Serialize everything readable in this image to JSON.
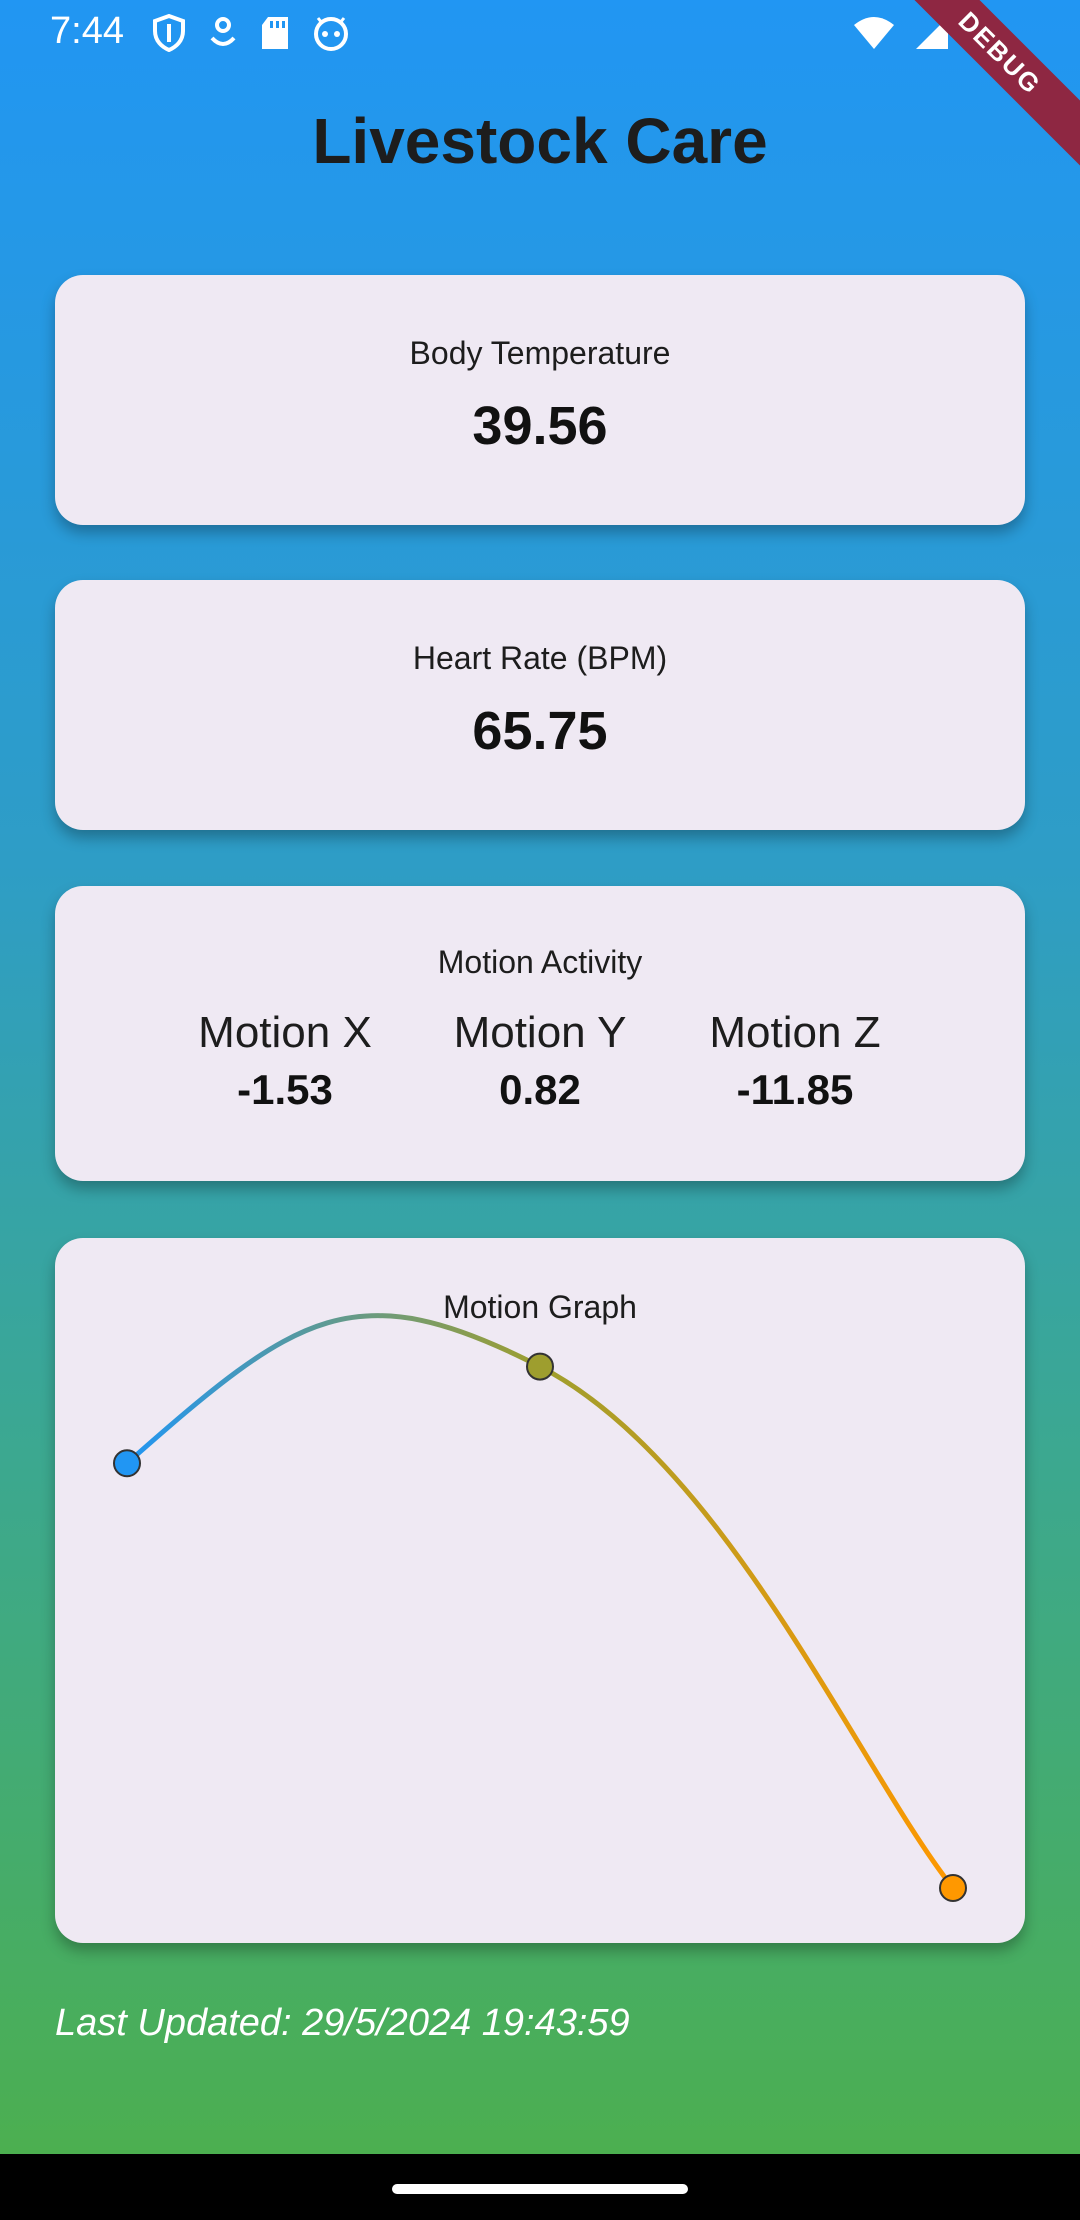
{
  "status": {
    "time": "7:44",
    "left_icons": [
      "shield-icon",
      "location-icon",
      "sd-card-icon",
      "android-icon"
    ],
    "right_icons": [
      "wifi-icon",
      "signal-icon",
      "battery-icon"
    ]
  },
  "debug_banner": "DEBUG",
  "title": "Livestock Care",
  "body_temperature": {
    "label": "Body Temperature",
    "value": "39.56"
  },
  "heart_rate": {
    "label": "Heart Rate (BPM)",
    "value": "65.75"
  },
  "motion": {
    "label": "Motion Activity",
    "x_label": "Motion X",
    "x_value": "-1.53",
    "y_label": "Motion Y",
    "y_value": "0.82",
    "z_label": "Motion Z",
    "z_value": "-11.85"
  },
  "chart_data": {
    "type": "line",
    "title": "Motion Graph",
    "x": [
      0,
      1,
      2
    ],
    "values": [
      -1.53,
      0.82,
      -11.85
    ],
    "ylim": [
      -11.85,
      2.0
    ],
    "grid": false,
    "colors": [
      "#2196F3",
      "#9E9E2E",
      "#FF9800"
    ]
  },
  "last_updated": "Last Updated: 29/5/2024 19:43:59",
  "colors": {
    "top": "#2196F3",
    "bottom": "#4CAF50",
    "card": "#EFE9F3"
  }
}
